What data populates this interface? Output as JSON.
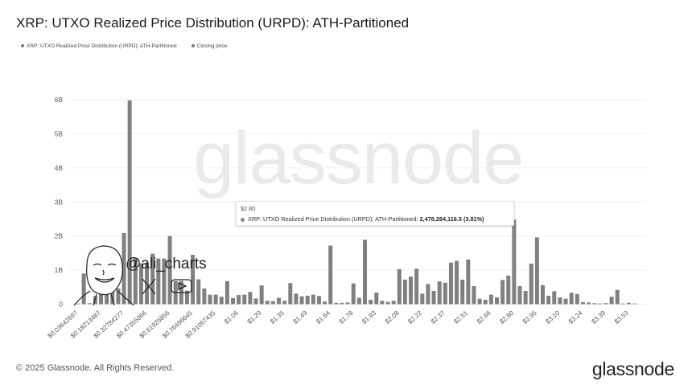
{
  "title": "XRP: UTXO Realized Price Distribution (URPD): ATH-Partitioned",
  "legend": [
    {
      "label": "XRP: UTXO Realized Price Distribution (URPD): ATH-Partitioned",
      "color": "#777777"
    },
    {
      "label": "Closing price",
      "color": "#777777"
    }
  ],
  "watermark": "glassnode",
  "tooltip": {
    "x": "$2.80",
    "series": "XRP: UTXO Realized Price Distribution (URPD): ATH-Partitioned:",
    "value": "2,478,284,116.5 (3.81%)"
  },
  "overlay": {
    "handle": "@ali_charts",
    "icons": [
      "x-logo-icon",
      "youtube-icon",
      "avatar-sketch"
    ]
  },
  "footer": {
    "copyright": "© 2025 Glassnode. All Rights Reserved.",
    "logo": "glassnode"
  },
  "chart_data": {
    "type": "bar",
    "title": "XRP: UTXO Realized Price Distribution (URPD): ATH-Partitioned",
    "ylim": [
      0,
      6000000000
    ],
    "yticks": [
      "0",
      "1B",
      "2B",
      "3B",
      "4B",
      "5B",
      "6B"
    ],
    "ytick_values": [
      0,
      1,
      2,
      3,
      4,
      5,
      6
    ],
    "value_unit": "billions",
    "grid": true,
    "bar_color": "#808080",
    "price_step": 0.036427,
    "xtick_labels": [
      "$0.03642697",
      "$0.18213487",
      "$0.32784277",
      "$0.47355066",
      "$0.61925856",
      "$0.76496645",
      "$0.91067435",
      "$1.06",
      "$1.20",
      "$1.35",
      "$1.49",
      "$1.64",
      "$1.78",
      "$1.93",
      "$2.08",
      "$2.22",
      "$2.37",
      "$2.51",
      "$2.66",
      "$2.80",
      "$2.95",
      "$3.10",
      "$3.24",
      "$3.39",
      "$3.53"
    ],
    "xtick_every": 4,
    "values": [
      0.02,
      0.9,
      0.03,
      0.24,
      1.0,
      1.6,
      1.0,
      0.46,
      2.09,
      5.98,
      1.35,
      1.2,
      1.22,
      1.48,
      1.34,
      1.34,
      2.0,
      0.68,
      0.68,
      0.4,
      1.45,
      0.73,
      0.46,
      0.28,
      0.28,
      0.22,
      0.68,
      0.18,
      0.27,
      0.28,
      0.36,
      0.17,
      0.55,
      0.1,
      0.09,
      0.19,
      0.1,
      0.62,
      0.31,
      0.23,
      0.25,
      0.28,
      0.24,
      0.08,
      1.72,
      0.04,
      0.04,
      0.05,
      0.61,
      0.19,
      1.89,
      0.13,
      0.34,
      0.1,
      0.07,
      0.1,
      1.03,
      0.72,
      0.81,
      1.04,
      0.31,
      0.59,
      0.39,
      0.67,
      0.63,
      1.22,
      1.27,
      0.72,
      1.31,
      0.53,
      0.16,
      0.13,
      0.28,
      0.2,
      0.71,
      0.84,
      2.478,
      0.53,
      0.39,
      1.19,
      1.96,
      0.56,
      0.25,
      0.38,
      0.2,
      0.16,
      0.34,
      0.3,
      0.06,
      0.05,
      0.03,
      0.02,
      0.03,
      0.22,
      0.42,
      0.02,
      0.04,
      0.02
    ]
  }
}
